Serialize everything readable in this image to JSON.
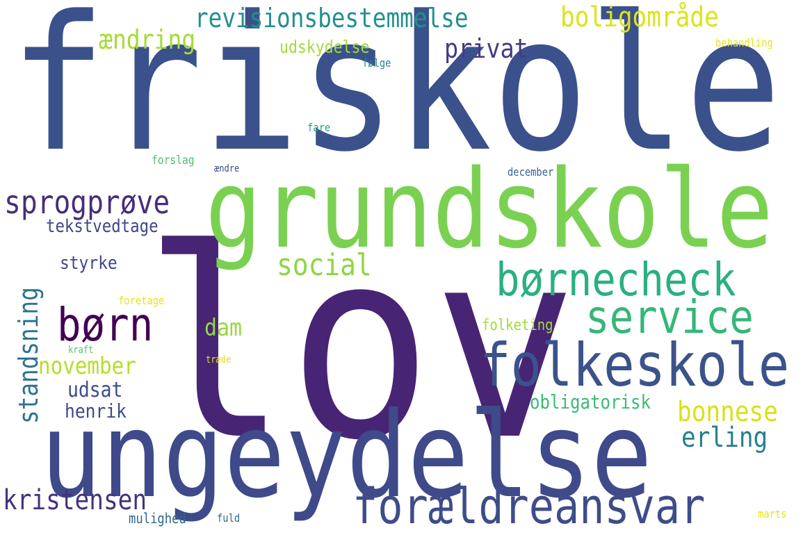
{
  "words": [
    {
      "id": "w-lov",
      "text": "lov",
      "color": "#482475"
    },
    {
      "id": "w-friskole",
      "text": "friskole",
      "color": "#3b518b"
    },
    {
      "id": "w-grundskole",
      "text": "grundskole",
      "color": "#7ad151"
    },
    {
      "id": "w-ungeydelse",
      "text": "ungeydelse",
      "color": "#3e4a89"
    },
    {
      "id": "w-folkeskole",
      "text": "folkeskole",
      "color": "#3b528b"
    },
    {
      "id": "w-foraeldreansvar",
      "text": "forældreansvar",
      "color": "#3e4c8a"
    },
    {
      "id": "w-boernecheck",
      "text": "børnecheck",
      "color": "#2ab07f"
    },
    {
      "id": "w-service",
      "text": "service",
      "color": "#35b779"
    },
    {
      "id": "w-boern",
      "text": "børn",
      "color": "#440154"
    },
    {
      "id": "w-sprogproeve",
      "text": "sprogprøve",
      "color": "#472d7b"
    },
    {
      "id": "w-revisionsbestemmelse",
      "text": "revisionsbestemmelse",
      "color": "#21908d"
    },
    {
      "id": "w-boligomraade",
      "text": "boligområde",
      "color": "#dde318"
    },
    {
      "id": "w-aendring",
      "text": "ændring",
      "color": "#a5db36"
    },
    {
      "id": "w-privat",
      "text": "privat",
      "color": "#443983"
    },
    {
      "id": "w-udskydelse",
      "text": "udskydelse",
      "color": "#a0da39"
    },
    {
      "id": "w-standsning",
      "text": "standsning",
      "color": "#2c728e"
    },
    {
      "id": "w-tekstvedtage",
      "text": "tekstvedtage",
      "color": "#3f4788"
    },
    {
      "id": "w-social",
      "text": "social",
      "color": "#8ed645"
    },
    {
      "id": "w-dam",
      "text": "dam",
      "color": "#95d840"
    },
    {
      "id": "w-november",
      "text": "november",
      "color": "#b5de2b"
    },
    {
      "id": "w-udsat",
      "text": "udsat",
      "color": "#3d4e8a"
    },
    {
      "id": "w-henrik",
      "text": "henrik",
      "color": "#3e4989"
    },
    {
      "id": "w-styrke",
      "text": "styrke",
      "color": "#404688"
    },
    {
      "id": "w-kristensen",
      "text": "kristensen",
      "color": "#46327e"
    },
    {
      "id": "w-bonnese",
      "text": "bonnese",
      "color": "#d8e219"
    },
    {
      "id": "w-erling",
      "text": "erling",
      "color": "#277f8e"
    },
    {
      "id": "w-obligatorisk",
      "text": "obligatorisk",
      "color": "#3aba76"
    },
    {
      "id": "w-folketing",
      "text": "folketing",
      "color": "#a2da37"
    },
    {
      "id": "w-foelge",
      "text": "følge",
      "color": "#26828e"
    },
    {
      "id": "w-behandling",
      "text": "behandling",
      "color": "#e5e419"
    },
    {
      "id": "w-fare",
      "text": "fare",
      "color": "#1f9e89"
    },
    {
      "id": "w-forslag",
      "text": "forslag",
      "color": "#4ac16d"
    },
    {
      "id": "w-aendre",
      "text": "ændre",
      "color": "#3e4989"
    },
    {
      "id": "w-december",
      "text": "december",
      "color": "#33638d"
    },
    {
      "id": "w-foretage",
      "text": "foretage",
      "color": "#e7e419"
    },
    {
      "id": "w-kraft",
      "text": "kraft",
      "color": "#52c569"
    },
    {
      "id": "w-traede",
      "text": "træde",
      "color": "#dde318"
    },
    {
      "id": "w-mulighed",
      "text": "mulighed",
      "color": "#31688e"
    },
    {
      "id": "w-fuld",
      "text": "fuld",
      "color": "#31688e"
    },
    {
      "id": "w-marts",
      "text": "marts",
      "color": "#e2e418"
    }
  ]
}
